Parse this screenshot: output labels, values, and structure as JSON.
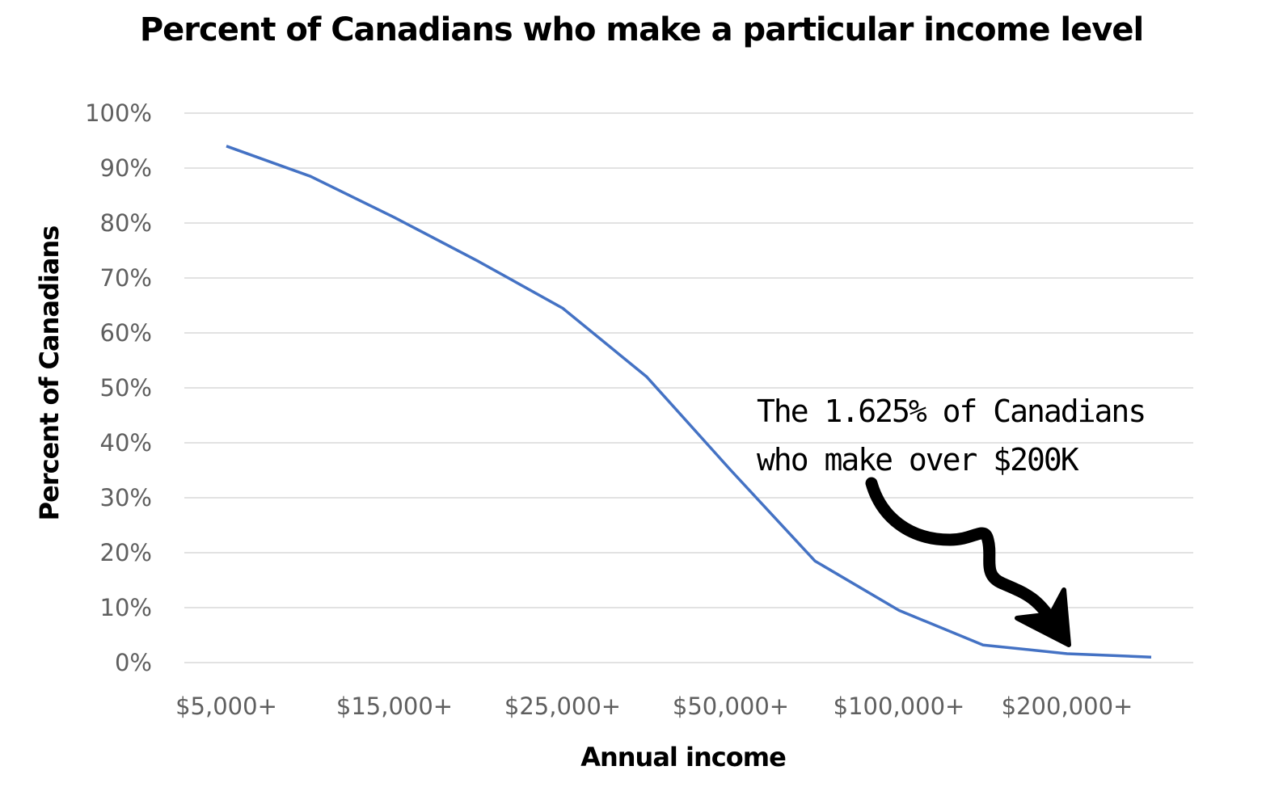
{
  "chart_data": {
    "type": "line",
    "title": "Percent of Canadians who make a particular income level",
    "xlabel": "Annual income",
    "ylabel": "Percent of Canadians",
    "x_tick_labels": [
      "$5,000+",
      "$15,000+",
      "$25,000+",
      "$50,000+",
      "$100,000+",
      "$200,000+"
    ],
    "y_tick_labels": [
      "0%",
      "10%",
      "20%",
      "30%",
      "40%",
      "50%",
      "60%",
      "70%",
      "80%",
      "90%",
      "100%"
    ],
    "ylim": [
      0,
      100
    ],
    "y_tick_step": 10,
    "grid": true,
    "legend": "none",
    "series": [
      {
        "color": "#4472c4",
        "points": [
          {
            "x": "$5,000+",
            "y": 94
          },
          {
            "x": "$10,000+",
            "y": 88.5
          },
          {
            "x": "$15,000+",
            "y": 81
          },
          {
            "x": "$20,000+",
            "y": 73
          },
          {
            "x": "$25,000+",
            "y": 64.5
          },
          {
            "x": "$35,000+",
            "y": 52
          },
          {
            "x": "$50,000+",
            "y": 35
          },
          {
            "x": "$75,000+",
            "y": 18.5
          },
          {
            "x": "$100,000+",
            "y": 9.5
          },
          {
            "x": "$150,000+",
            "y": 3.2
          },
          {
            "x": "$200,000+",
            "y": 1.625
          },
          {
            "x": "$250,000+",
            "y": 1.0
          }
        ]
      }
    ],
    "annotation": {
      "lines": [
        "The 1.625% of Canadians",
        "who make over $200K"
      ],
      "points_to": {
        "x": "$200,000+",
        "y": 1.625
      }
    }
  },
  "colors": {
    "line": "#4472c4",
    "grid": "#d9d9d9",
    "tick_text": "#5f5f5f",
    "arrow": "#000000"
  }
}
